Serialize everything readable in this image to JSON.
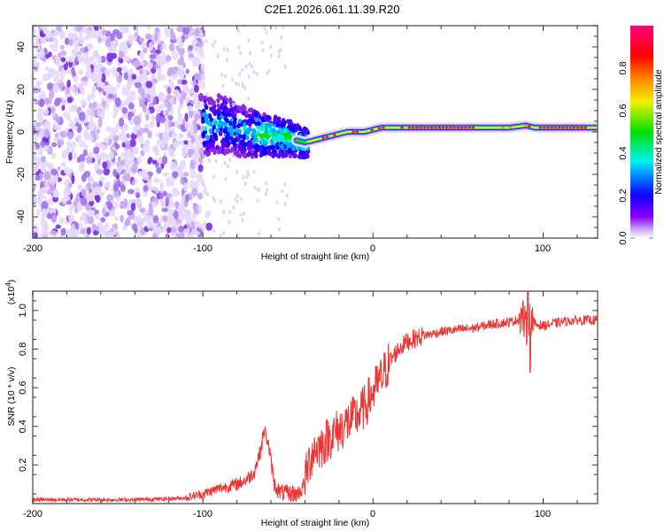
{
  "chart_data": [
    {
      "type": "heatmap",
      "title": "C2E1.2026.061.11.39.R20",
      "xlabel": "Height of straight line (km)",
      "ylabel": "Frequency (Hz)",
      "xlim": [
        -200,
        132
      ],
      "ylim": [
        -50,
        50
      ],
      "xticks": [
        -200,
        -100,
        0,
        100
      ],
      "xtick_labels": [
        "-200",
        "-100",
        "0",
        "100"
      ],
      "yticks": [
        -40,
        -20,
        0,
        20,
        40
      ],
      "ytick_labels": [
        "-40",
        "-20",
        "0",
        "20",
        "40"
      ],
      "colorbar": {
        "label": "Normalized spectral amplitude",
        "range": [
          0.0,
          1.0
        ],
        "ticks": [
          0.0,
          0.2,
          0.4,
          0.6,
          0.8
        ],
        "tick_labels": [
          "0.0",
          "0.2",
          "0.4",
          "0.6",
          "0.8"
        ],
        "colormap": [
          "#ffffff",
          "#8a00ff",
          "#0000ff",
          "#00e0ff",
          "#00e000",
          "#f0f000",
          "#ff8000",
          "#ff0000",
          "#ff0080"
        ]
      },
      "ridge": {
        "description_values": "peak frequency (Hz) vs height (km)",
        "x": [
          -100,
          -90,
          -80,
          -70,
          -60,
          -50,
          -45,
          -40,
          -35,
          -30,
          -25,
          -20,
          -15,
          -10,
          -5,
          0,
          5,
          10,
          20,
          40,
          60,
          80,
          90,
          95,
          100,
          120,
          132
        ],
        "y": [
          3,
          4,
          1,
          -1,
          -2,
          -3,
          -4,
          -5,
          -4,
          -3,
          -2,
          -1,
          0,
          0,
          0,
          1,
          2,
          2,
          2,
          2,
          2,
          2,
          3,
          2,
          2,
          2,
          2
        ]
      },
      "noise_region_x": [
        -200,
        -100
      ]
    },
    {
      "type": "line",
      "xlabel": "Height of straight line (km)",
      "ylabel": "SNR (10 * v/v)",
      "y_multiplier_label": "(x10⁴)",
      "y_multiplier_base": "(x10",
      "y_multiplier_exp": "4",
      "xlim": [
        -200,
        132
      ],
      "ylim": [
        0.0,
        1.1
      ],
      "xticks": [
        -200,
        -100,
        0,
        100
      ],
      "xtick_labels": [
        "-200",
        "-100",
        "0",
        "100"
      ],
      "yticks": [
        0.2,
        0.4,
        0.6,
        0.8,
        1.0
      ],
      "ytick_labels": [
        "0.2",
        "0.4",
        "0.6",
        "0.8",
        "1.0"
      ],
      "color": "#ee3333",
      "series": [
        {
          "name": "SNR",
          "x": [
            -200,
            -180,
            -160,
            -140,
            -120,
            -110,
            -100,
            -90,
            -80,
            -75,
            -70,
            -66,
            -64,
            -62,
            -60,
            -58,
            -55,
            -50,
            -45,
            -42,
            -40,
            -38,
            -35,
            -30,
            -25,
            -20,
            -15,
            -10,
            -5,
            0,
            5,
            10,
            15,
            20,
            30,
            40,
            50,
            60,
            70,
            80,
            85,
            88,
            90,
            92,
            95,
            100,
            110,
            120,
            132
          ],
          "y": [
            0.02,
            0.02,
            0.02,
            0.02,
            0.025,
            0.03,
            0.05,
            0.08,
            0.1,
            0.12,
            0.16,
            0.28,
            0.38,
            0.33,
            0.22,
            0.1,
            0.06,
            0.05,
            0.05,
            0.07,
            0.12,
            0.2,
            0.28,
            0.3,
            0.35,
            0.38,
            0.42,
            0.45,
            0.5,
            0.58,
            0.65,
            0.74,
            0.8,
            0.84,
            0.87,
            0.89,
            0.9,
            0.91,
            0.93,
            0.94,
            0.95,
            0.97,
            0.9,
            0.99,
            0.93,
            0.92,
            0.94,
            0.95,
            0.95
          ]
        }
      ]
    }
  ]
}
